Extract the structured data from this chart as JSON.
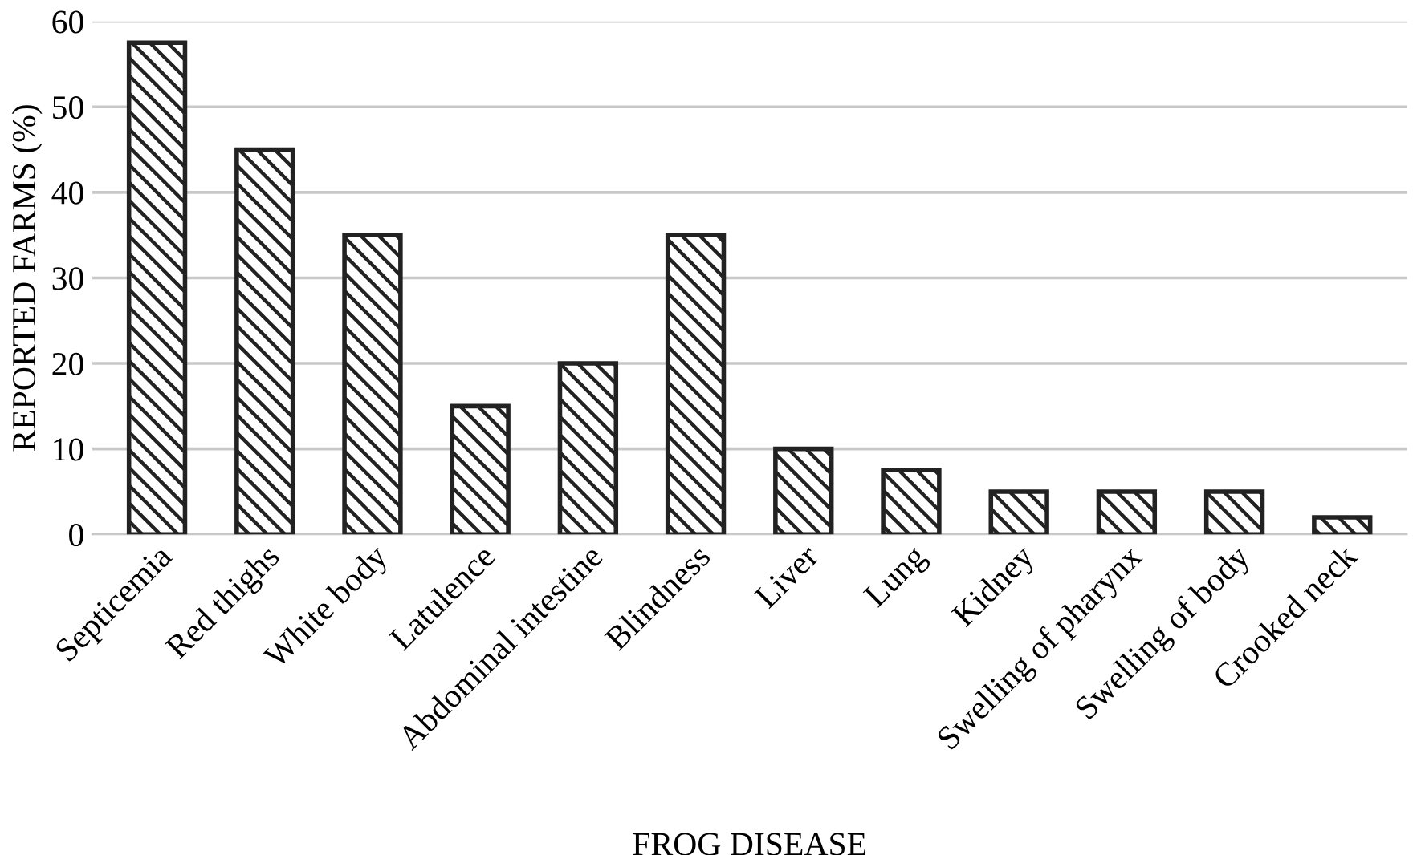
{
  "chart_data": {
    "type": "bar",
    "xlabel": "FROG DISEASE",
    "ylabel": "REPORTED FARMS (%)",
    "categories": [
      "Septicemia",
      "Red thighs",
      "White body",
      "Latulence",
      "Abdominal intestine",
      "Blindness",
      "Liver",
      "Lung",
      "Kidney",
      "Swelling of pharynx",
      "Swelling of body",
      "Crooked neck"
    ],
    "values": [
      57.5,
      45,
      35,
      15,
      20,
      35,
      10,
      7.5,
      5,
      5,
      5,
      2
    ],
    "color": "#222222",
    "ylim": [
      0,
      60
    ],
    "yticks": [
      0,
      10,
      20,
      30,
      40,
      50,
      60
    ],
    "grid": "y",
    "legend": false
  }
}
